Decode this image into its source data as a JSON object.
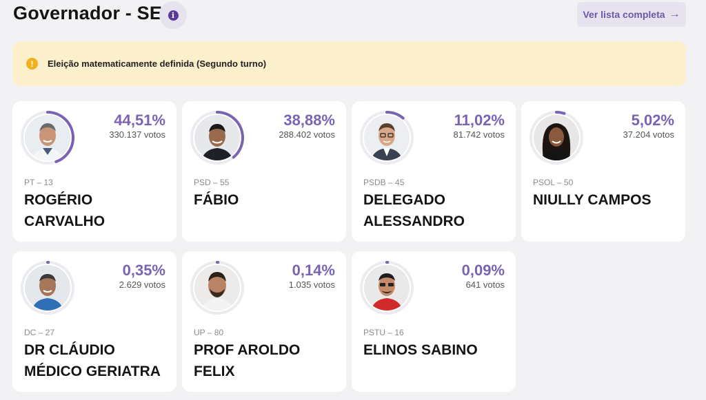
{
  "header": {
    "title": "Governador - SE",
    "full_list_label": "Ver lista completa",
    "full_list_arrow": "→"
  },
  "alert": {
    "message": "Eleição matematicamente definida (Segundo turno)"
  },
  "colors": {
    "accent": "#7a63b3",
    "alert_bg": "#fcefcc",
    "alert_icon": "#f2b01c"
  },
  "candidates": [
    {
      "name": "ROGÉRIO CARVALHO",
      "party": "PT – 13",
      "percent": "44,51%",
      "votes": "330.137 votos",
      "share": 44.51
    },
    {
      "name": "FÁBIO",
      "party": "PSD – 55",
      "percent": "38,88%",
      "votes": "288.402 votos",
      "share": 38.88
    },
    {
      "name": "DELEGADO ALESSANDRO",
      "party": "PSDB – 45",
      "percent": "11,02%",
      "votes": "81.742 votos",
      "share": 11.02
    },
    {
      "name": "NIULLY CAMPOS",
      "party": "PSOL – 50",
      "percent": "5,02%",
      "votes": "37.204 votos",
      "share": 5.02
    },
    {
      "name": "DR CLÁUDIO MÉDICO GERIATRA",
      "party": "DC – 27",
      "percent": "0,35%",
      "votes": "2.629 votos",
      "share": 0.35
    },
    {
      "name": "PROF AROLDO FELIX",
      "party": "UP – 80",
      "percent": "0,14%",
      "votes": "1.035 votos",
      "share": 0.14
    },
    {
      "name": "ELINOS SABINO",
      "party": "PSTU – 16",
      "percent": "0,09%",
      "votes": "641 votos",
      "share": 0.09
    }
  ]
}
